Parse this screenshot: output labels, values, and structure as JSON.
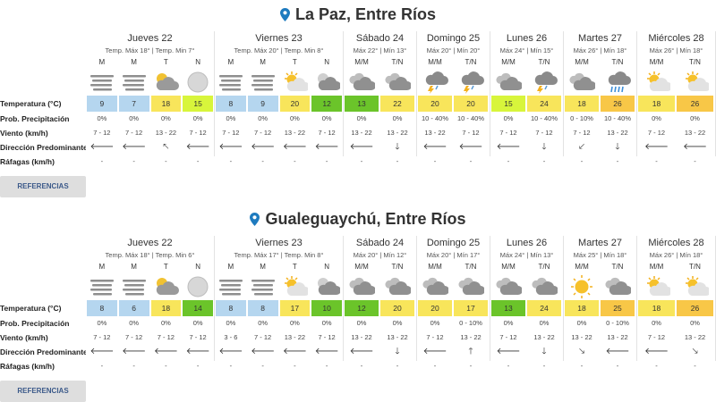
{
  "labels": {
    "temperatura": "Temperatura (°C)",
    "precip": "Prob. Precipitación",
    "viento": "Viento (km/h)",
    "direccion": "Dirección Predominante",
    "rafagas": "Ráfagas (km/h)"
  },
  "references_button": "REFERENCIAS",
  "colors": {
    "blue": "#b5d6ef",
    "yellow": "#f8e55b",
    "lime": "#d8f53b",
    "green": "#6bc42a",
    "orange": "#f8c747",
    "pin": "#1e7bbf"
  },
  "blocks": [
    {
      "city": "La Paz, Entre Ríos",
      "days": [
        {
          "name": "Jueves 22",
          "temps": "Temp. Máx 18° | Temp. Min 7°",
          "slots": [
            {
              "code": "M",
              "icon": "fog-icon",
              "temp": "9",
              "color": "blue",
              "precip": "0%",
              "wind": "7 - 12",
              "dir": "🡐",
              "gust": "-"
            },
            {
              "code": "M",
              "icon": "fog-icon",
              "temp": "7",
              "color": "blue",
              "precip": "0%",
              "wind": "7 - 12",
              "dir": "🡐",
              "gust": "-"
            },
            {
              "code": "T",
              "icon": "partly-cloudy-icon",
              "temp": "18",
              "color": "yellow",
              "precip": "0%",
              "wind": "13 - 22",
              "dir": "🡔",
              "gust": "-"
            },
            {
              "code": "N",
              "icon": "moon-icon",
              "temp": "15",
              "color": "lime",
              "precip": "0%",
              "wind": "7 - 12",
              "dir": "🡐",
              "gust": "-"
            }
          ]
        },
        {
          "name": "Viernes 23",
          "temps": "Temp. Máx 20° | Temp. Min 8°",
          "slots": [
            {
              "code": "M",
              "icon": "fog-icon",
              "temp": "8",
              "color": "blue",
              "precip": "0%",
              "wind": "7 - 12",
              "dir": "🡐",
              "gust": "-"
            },
            {
              "code": "M",
              "icon": "fog-icon",
              "temp": "9",
              "color": "blue",
              "precip": "0%",
              "wind": "7 - 12",
              "dir": "🡐",
              "gust": "-"
            },
            {
              "code": "T",
              "icon": "sun-cloud-icon",
              "temp": "20",
              "color": "yellow",
              "precip": "0%",
              "wind": "13 - 22",
              "dir": "🡐",
              "gust": "-"
            },
            {
              "code": "N",
              "icon": "cloudy-night-icon",
              "temp": "12",
              "color": "green",
              "precip": "0%",
              "wind": "7 - 12",
              "dir": "🡐",
              "gust": "-"
            }
          ]
        },
        {
          "name": "Sábado 24",
          "temps": "Máx 22° | Mín 13°",
          "slots": [
            {
              "code": "M/M",
              "icon": "cloudy-icon",
              "temp": "13",
              "color": "green",
              "precip": "0%",
              "wind": "13 - 22",
              "dir": "🡐",
              "gust": "-"
            },
            {
              "code": "T/N",
              "icon": "cloudy-icon",
              "temp": "22",
              "color": "yellow",
              "precip": "0%",
              "wind": "13 - 22",
              "dir": "🡓",
              "gust": "-"
            }
          ]
        },
        {
          "name": "Domingo 25",
          "temps": "Máx 20° | Mín 20°",
          "slots": [
            {
              "code": "M/M",
              "icon": "storm-icon",
              "temp": "20",
              "color": "yellow",
              "precip": "10 - 40%",
              "wind": "13 - 22",
              "dir": "🡐",
              "gust": "-"
            },
            {
              "code": "T/N",
              "icon": "storm-icon",
              "temp": "20",
              "color": "yellow",
              "precip": "10 - 40%",
              "wind": "7 - 12",
              "dir": "🡐",
              "gust": "-"
            }
          ]
        },
        {
          "name": "Lunes 26",
          "temps": "Máx 24° | Mín 15°",
          "slots": [
            {
              "code": "M/M",
              "icon": "cloudy-icon",
              "temp": "15",
              "color": "lime",
              "precip": "0%",
              "wind": "7 - 12",
              "dir": "🡐",
              "gust": "-"
            },
            {
              "code": "T/N",
              "icon": "storm-icon",
              "temp": "24",
              "color": "yellow",
              "precip": "10 - 40%",
              "wind": "7 - 12",
              "dir": "🡓",
              "gust": "-"
            }
          ]
        },
        {
          "name": "Martes 27",
          "temps": "Máx 26° | Mín 18°",
          "slots": [
            {
              "code": "M/M",
              "icon": "cloudy-icon",
              "temp": "18",
              "color": "yellow",
              "precip": "0 - 10%",
              "wind": "7 - 12",
              "dir": "🡗",
              "gust": "-"
            },
            {
              "code": "T/N",
              "icon": "rain-storm-icon",
              "temp": "26",
              "color": "orange",
              "precip": "10 - 40%",
              "wind": "13 - 22",
              "dir": "🡓",
              "gust": "-"
            }
          ]
        },
        {
          "name": "Miércoles 28",
          "temps": "Máx 26° | Mín 18°",
          "slots": [
            {
              "code": "M/M",
              "icon": "sun-cloud-icon",
              "temp": "18",
              "color": "yellow",
              "precip": "0%",
              "wind": "7 - 12",
              "dir": "🡐",
              "gust": "-"
            },
            {
              "code": "T/N",
              "icon": "sun-cloud-icon",
              "temp": "26",
              "color": "orange",
              "precip": "0%",
              "wind": "13 - 22",
              "dir": "🡐",
              "gust": "-"
            }
          ]
        }
      ]
    },
    {
      "city": "Gualeguaychú, Entre Ríos",
      "days": [
        {
          "name": "Jueves 22",
          "temps": "Temp. Máx 18° | Temp. Min 6°",
          "slots": [
            {
              "code": "M",
              "icon": "fog-icon",
              "temp": "8",
              "color": "blue",
              "precip": "0%",
              "wind": "7 - 12",
              "dir": "🡐",
              "gust": "-"
            },
            {
              "code": "M",
              "icon": "fog-icon",
              "temp": "6",
              "color": "blue",
              "precip": "0%",
              "wind": "7 - 12",
              "dir": "🡐",
              "gust": "-"
            },
            {
              "code": "T",
              "icon": "partly-cloudy-icon",
              "temp": "18",
              "color": "yellow",
              "precip": "0%",
              "wind": "7 - 12",
              "dir": "🡐",
              "gust": "-"
            },
            {
              "code": "N",
              "icon": "moon-icon",
              "temp": "14",
              "color": "green",
              "precip": "0%",
              "wind": "7 - 12",
              "dir": "🡐",
              "gust": "-"
            }
          ]
        },
        {
          "name": "Viernes 23",
          "temps": "Temp. Máx 17° | Temp. Min 8°",
          "slots": [
            {
              "code": "M",
              "icon": "fog-icon",
              "temp": "8",
              "color": "blue",
              "precip": "0%",
              "wind": "3 - 6",
              "dir": "🡐",
              "gust": "-"
            },
            {
              "code": "M",
              "icon": "fog-icon",
              "temp": "8",
              "color": "blue",
              "precip": "0%",
              "wind": "7 - 12",
              "dir": "🡐",
              "gust": "-"
            },
            {
              "code": "T",
              "icon": "sun-cloud-icon",
              "temp": "17",
              "color": "yellow",
              "precip": "0%",
              "wind": "13 - 22",
              "dir": "🡐",
              "gust": "-"
            },
            {
              "code": "N",
              "icon": "cloudy-night-icon",
              "temp": "10",
              "color": "green",
              "precip": "0%",
              "wind": "7 - 12",
              "dir": "🡐",
              "gust": "-"
            }
          ]
        },
        {
          "name": "Sábado 24",
          "temps": "Máx 20° | Mín 12°",
          "slots": [
            {
              "code": "M/M",
              "icon": "cloudy-icon",
              "temp": "12",
              "color": "green",
              "precip": "0%",
              "wind": "13 - 22",
              "dir": "🡐",
              "gust": "-"
            },
            {
              "code": "T/N",
              "icon": "cloudy-icon",
              "temp": "20",
              "color": "yellow",
              "precip": "0%",
              "wind": "13 - 22",
              "dir": "🡓",
              "gust": "-"
            }
          ]
        },
        {
          "name": "Domingo 25",
          "temps": "Máx 20° | Mín 17°",
          "slots": [
            {
              "code": "M/M",
              "icon": "cloudy-icon",
              "temp": "20",
              "color": "yellow",
              "precip": "0%",
              "wind": "7 - 12",
              "dir": "🡐",
              "gust": "-"
            },
            {
              "code": "T/N",
              "icon": "cloudy-icon",
              "temp": "17",
              "color": "yellow",
              "precip": "0 - 10%",
              "wind": "13 - 22",
              "dir": "🡑",
              "gust": "-"
            }
          ]
        },
        {
          "name": "Lunes 26",
          "temps": "Máx 24° | Mín 13°",
          "slots": [
            {
              "code": "M/M",
              "icon": "cloudy-icon",
              "temp": "13",
              "color": "green",
              "precip": "0%",
              "wind": "7 - 12",
              "dir": "🡐",
              "gust": "-"
            },
            {
              "code": "T/N",
              "icon": "cloudy-icon",
              "temp": "24",
              "color": "yellow",
              "precip": "0%",
              "wind": "13 - 22",
              "dir": "🡓",
              "gust": "-"
            }
          ]
        },
        {
          "name": "Martes 27",
          "temps": "Máx 25° | Mín 18°",
          "slots": [
            {
              "code": "M/M",
              "icon": "sun-icon",
              "temp": "18",
              "color": "yellow",
              "precip": "0%",
              "wind": "13 - 22",
              "dir": "🡖",
              "gust": "-"
            },
            {
              "code": "T/N",
              "icon": "cloudy-icon",
              "temp": "25",
              "color": "orange",
              "precip": "0 - 10%",
              "wind": "13 - 22",
              "dir": "🡐",
              "gust": "-"
            }
          ]
        },
        {
          "name": "Miércoles 28",
          "temps": "Máx 26° | Mín 18°",
          "slots": [
            {
              "code": "M/M",
              "icon": "sun-cloud-icon",
              "temp": "18",
              "color": "yellow",
              "precip": "0%",
              "wind": "7 - 12",
              "dir": "🡐",
              "gust": "-"
            },
            {
              "code": "T/N",
              "icon": "sun-cloud-icon",
              "temp": "26",
              "color": "orange",
              "precip": "0%",
              "wind": "13 - 22",
              "dir": "🡖",
              "gust": "-"
            }
          ]
        }
      ]
    }
  ]
}
